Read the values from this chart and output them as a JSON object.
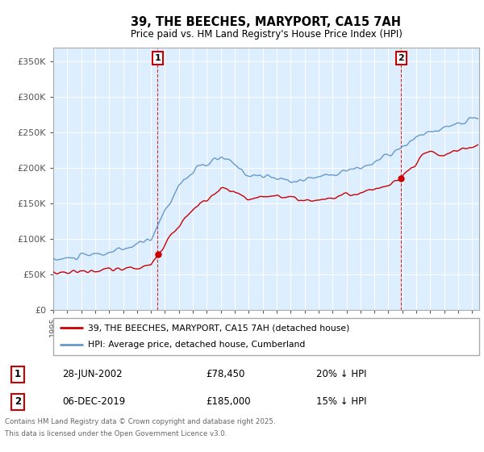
{
  "title": "39, THE BEECHES, MARYPORT, CA15 7AH",
  "subtitle": "Price paid vs. HM Land Registry's House Price Index (HPI)",
  "ylabel_ticks": [
    "£0",
    "£50K",
    "£100K",
    "£150K",
    "£200K",
    "£250K",
    "£300K",
    "£350K"
  ],
  "ytick_vals": [
    0,
    50000,
    100000,
    150000,
    200000,
    250000,
    300000,
    350000
  ],
  "ylim": [
    0,
    370000
  ],
  "xlim_start": 1995.0,
  "xlim_end": 2025.5,
  "line1_color": "#cc0000",
  "line2_color": "#6699cc",
  "plot_bg_color": "#ddeeff",
  "legend_label1": "39, THE BEECHES, MARYPORT, CA15 7AH (detached house)",
  "legend_label2": "HPI: Average price, detached house, Cumberland",
  "marker1_date": 2002.48,
  "marker1_value": 78450,
  "marker1_label": "1",
  "marker2_date": 2019.92,
  "marker2_value": 185000,
  "marker2_label": "2",
  "footer_line1": "Contains HM Land Registry data © Crown copyright and database right 2025.",
  "footer_line2": "This data is licensed under the Open Government Licence v3.0.",
  "transaction1_date": "28-JUN-2002",
  "transaction1_price": "£78,450",
  "transaction1_hpi": "20% ↓ HPI",
  "transaction2_date": "06-DEC-2019",
  "transaction2_price": "£185,000",
  "transaction2_hpi": "15% ↓ HPI",
  "background_color": "#ffffff",
  "grid_color": "#ffffff"
}
